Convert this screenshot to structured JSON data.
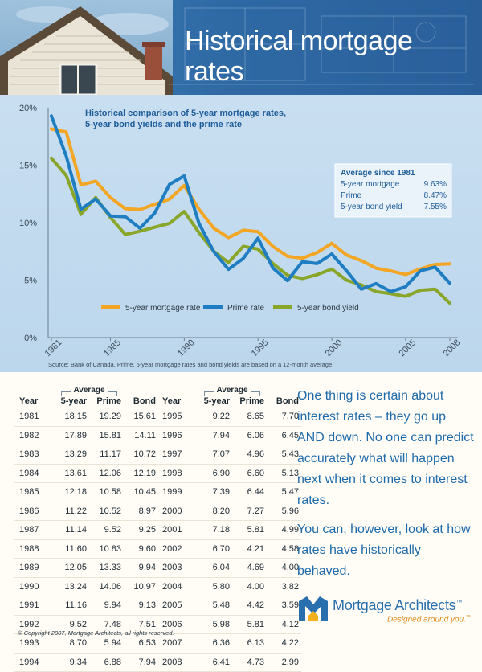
{
  "page": {
    "title": "Historical mortgage rates",
    "copyright": "© Copyright 2007, Mortgage Architects, all rights reserved."
  },
  "chart_data": {
    "type": "line",
    "title": "Historical comparison of 5-year mortgage rates, 5-year bond yields and the prime rate",
    "title_lines": [
      "Historical comparison of 5-year mortgage rates,",
      "5-year bond yields and the prime rate"
    ],
    "x_ticks": [
      "1981",
      "1985",
      "1990",
      "1995",
      "2000",
      "2005",
      "2008"
    ],
    "y_ticks": [
      "0%",
      "5%",
      "10%",
      "15%",
      "20%"
    ],
    "ylim": [
      0,
      20
    ],
    "xlim": [
      1981,
      2008
    ],
    "grid": false,
    "legend_position": "bottom",
    "x": [
      1981,
      1982,
      1983,
      1984,
      1985,
      1986,
      1987,
      1988,
      1989,
      1990,
      1991,
      1992,
      1993,
      1994,
      1995,
      1996,
      1997,
      1998,
      1999,
      2000,
      2001,
      2002,
      2003,
      2004,
      2005,
      2006,
      2007,
      2008
    ],
    "series": [
      {
        "name": "5-year mortgage rate",
        "color": "#f2a623",
        "values": [
          18.15,
          17.89,
          13.29,
          13.61,
          12.18,
          11.22,
          11.14,
          11.6,
          12.05,
          13.24,
          11.16,
          9.52,
          8.7,
          9.34,
          9.22,
          7.94,
          7.07,
          6.9,
          7.39,
          8.2,
          7.18,
          6.7,
          6.04,
          5.8,
          5.48,
          5.98,
          6.36,
          6.41
        ]
      },
      {
        "name": "Prime rate",
        "color": "#1f7dc1",
        "values": [
          19.29,
          15.81,
          11.17,
          12.06,
          10.58,
          10.52,
          9.52,
          10.83,
          13.33,
          14.06,
          9.94,
          7.48,
          5.94,
          6.88,
          8.65,
          6.06,
          4.96,
          6.6,
          6.44,
          7.27,
          5.81,
          4.21,
          4.69,
          4.0,
          4.42,
          5.81,
          6.13,
          4.73
        ]
      },
      {
        "name": "5-year bond yield",
        "color": "#8aa62a",
        "values": [
          15.61,
          14.11,
          10.72,
          12.19,
          10.45,
          8.97,
          9.25,
          9.6,
          9.94,
          10.97,
          9.13,
          7.51,
          6.53,
          7.94,
          7.7,
          6.45,
          5.43,
          5.13,
          5.47,
          5.96,
          4.99,
          4.58,
          4.0,
          3.82,
          3.59,
          4.12,
          4.22,
          2.99
        ]
      }
    ],
    "averages": {
      "heading": "Average since 1981",
      "rows": [
        {
          "label": "5-year mortgage",
          "value": "9.63%"
        },
        {
          "label": "Prime",
          "value": "8.47%"
        },
        {
          "label": "5-year bond yield",
          "value": "7.55%"
        }
      ]
    },
    "source": "Source: Bank of Canada. Prime, 5-year mortgage rates and bond yields are based on a 12-month average."
  },
  "table": {
    "headers": {
      "year": "Year",
      "average": "Average",
      "mortgage": "5-year",
      "prime": "Prime",
      "bond": "Bond"
    },
    "left_rows": [
      [
        "1981",
        "18.15",
        "19.29",
        "15.61"
      ],
      [
        "1982",
        "17.89",
        "15.81",
        "14.11"
      ],
      [
        "1983",
        "13.29",
        "11.17",
        "10.72"
      ],
      [
        "1984",
        "13.61",
        "12.06",
        "12.19"
      ],
      [
        "1985",
        "12.18",
        "10.58",
        "10.45"
      ],
      [
        "1986",
        "11.22",
        "10.52",
        "8.97"
      ],
      [
        "1987",
        "11.14",
        "9.52",
        "9.25"
      ],
      [
        "1988",
        "11.60",
        "10.83",
        "9.60"
      ],
      [
        "1989",
        "12.05",
        "13.33",
        "9.94"
      ],
      [
        "1990",
        "13.24",
        "14.06",
        "10.97"
      ],
      [
        "1991",
        "11.16",
        "9.94",
        "9.13"
      ],
      [
        "1992",
        "9.52",
        "7.48",
        "7.51"
      ],
      [
        "1993",
        "8.70",
        "5.94",
        "6.53"
      ],
      [
        "1994",
        "9.34",
        "6.88",
        "7.94"
      ]
    ],
    "right_rows": [
      [
        "1995",
        "9.22",
        "8.65",
        "7.70"
      ],
      [
        "1996",
        "7.94",
        "6.06",
        "6.45"
      ],
      [
        "1997",
        "7.07",
        "4.96",
        "5.43"
      ],
      [
        "1998",
        "6.90",
        "6.60",
        "5.13"
      ],
      [
        "1999",
        "7.39",
        "6.44",
        "5.47"
      ],
      [
        "2000",
        "8.20",
        "7.27",
        "5.96"
      ],
      [
        "2001",
        "7.18",
        "5.81",
        "4.99"
      ],
      [
        "2002",
        "6.70",
        "4.21",
        "4.58"
      ],
      [
        "2003",
        "6.04",
        "4.69",
        "4.00"
      ],
      [
        "2004",
        "5.80",
        "4.00",
        "3.82"
      ],
      [
        "2005",
        "5.48",
        "4.42",
        "3.59"
      ],
      [
        "2006",
        "5.98",
        "5.81",
        "4.12"
      ],
      [
        "2007",
        "6.36",
        "6.13",
        "4.22"
      ],
      [
        "2008",
        "6.41",
        "4.73",
        "2.99"
      ]
    ]
  },
  "side_copy": {
    "paragraph1": "One thing is certain about interest rates – they go up AND down. No one can predict accurately what will happen next when it comes to interest rates.",
    "paragraph2": "You can, however, look at how rates have historically behaved."
  },
  "logo": {
    "name": "Mortgage Architects",
    "trademark": "™",
    "tagline": "Designed around you.",
    "tagline_mark": "™",
    "mark_letter": "M"
  }
}
